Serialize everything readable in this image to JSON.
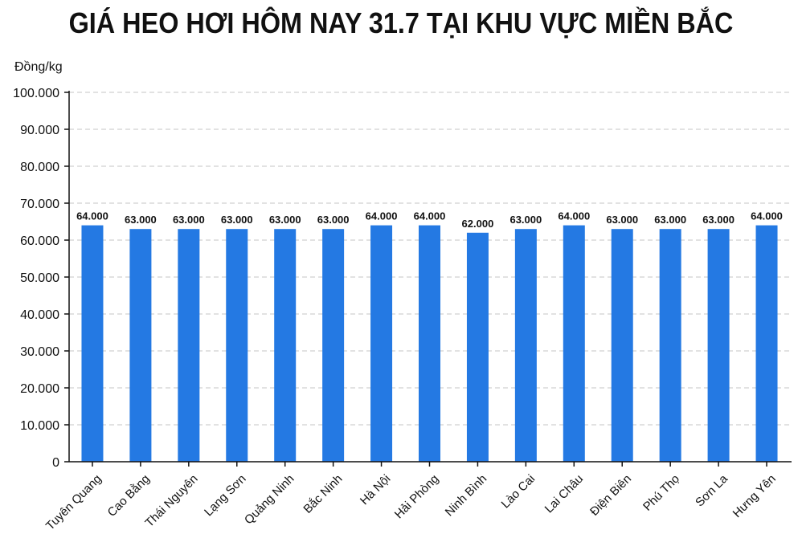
{
  "chart_data": {
    "type": "bar",
    "title": "GIÁ HEO HƠI HÔM NAY 31.7 TẠI KHU VỰC MIỀN BẮC",
    "ylabel": "Đồng/kg",
    "xlabel": "",
    "categories": [
      "Tuyên Quang",
      "Cao Bằng",
      "Thái Nguyên",
      "Lạng Sơn",
      "Quảng Ninh",
      "Bắc Ninh",
      "Hà Nội",
      "Hải Phòng",
      "Ninh Bình",
      "Lào Cai",
      "Lai Châu",
      "Điện Biên",
      "Phú Thọ",
      "Sơn La",
      "Hưng Yên"
    ],
    "values": [
      64000,
      63000,
      63000,
      63000,
      63000,
      63000,
      64000,
      64000,
      62000,
      63000,
      64000,
      63000,
      63000,
      63000,
      64000
    ],
    "value_labels": [
      "64.000",
      "63.000",
      "63.000",
      "63.000",
      "63.000",
      "63.000",
      "64.000",
      "64.000",
      "62.000",
      "63.000",
      "64.000",
      "63.000",
      "63.000",
      "63.000",
      "64.000"
    ],
    "ylim": [
      0,
      100000
    ],
    "yticks": [
      0,
      10000,
      20000,
      30000,
      40000,
      50000,
      60000,
      70000,
      80000,
      90000,
      100000
    ],
    "ytick_labels": [
      "0",
      "10.000",
      "20.000",
      "30.000",
      "40.000",
      "50.000",
      "60.000",
      "70.000",
      "80.000",
      "90.000",
      "100.000"
    ],
    "grid": true,
    "bar_color": "#2479e3"
  }
}
